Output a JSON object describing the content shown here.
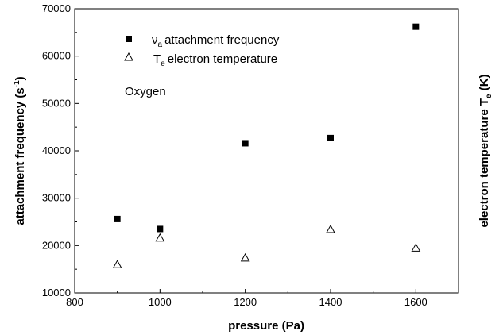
{
  "chart_data": {
    "type": "scatter",
    "x": [
      900,
      1000,
      1200,
      1400,
      1600
    ],
    "series": [
      {
        "name": "attachment frequency",
        "symbol": "ν",
        "subscript": "a",
        "marker": "filled-square",
        "values": [
          25600,
          23500,
          41600,
          42700,
          66200
        ]
      },
      {
        "name": "electron temperature",
        "symbol": "T",
        "subscript": "e",
        "marker": "open-triangle",
        "values": [
          16000,
          21600,
          17400,
          23400,
          19500
        ]
      }
    ],
    "xlim": [
      800,
      1700
    ],
    "ylim": [
      10000,
      70000
    ],
    "xticks": [
      "800",
      "1000",
      "1200",
      "1400",
      "1600"
    ],
    "yticks": [
      "10000",
      "20000",
      "30000",
      "40000",
      "50000",
      "60000",
      "70000"
    ],
    "xlabel": "pressure (Pa)",
    "ylabel": "attachment frequency (s",
    "ylabel_sup": "-1",
    "ylabel_close": ")",
    "y2label": "electron temperature T",
    "y2label_sub": "e",
    "y2label_unit": " (K)",
    "annotation": "Oxygen",
    "legend_placement": "top-left",
    "grid": false,
    "colors": {
      "marker": "#000000",
      "axis": "#000000",
      "background": "#ffffff"
    }
  }
}
